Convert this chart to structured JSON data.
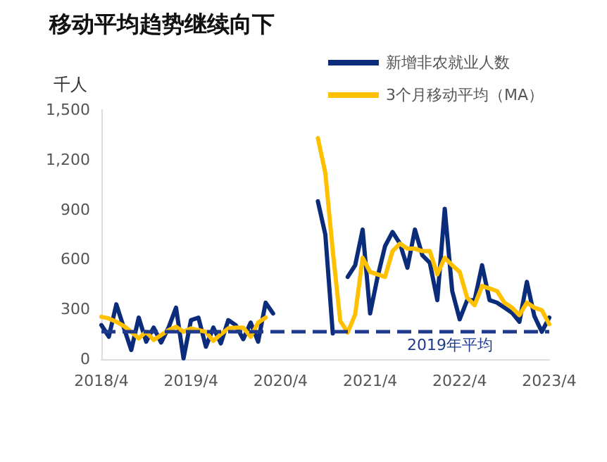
{
  "chart_data": {
    "type": "line",
    "title": "移动平均趋势继续向下",
    "ylabel": "千人",
    "categories": [
      "2018/4",
      null,
      null,
      null,
      null,
      null,
      null,
      null,
      null,
      null,
      null,
      null,
      "2019/4",
      null,
      null,
      null,
      null,
      null,
      null,
      null,
      null,
      null,
      null,
      null,
      "2020/4",
      null,
      null,
      null,
      null,
      null,
      null,
      null,
      null,
      null,
      null,
      null,
      "2021/4",
      null,
      null,
      null,
      null,
      null,
      null,
      null,
      null,
      null,
      null,
      null,
      "2022/4",
      null,
      null,
      null,
      null,
      null,
      null,
      null,
      null,
      null,
      null,
      null,
      "2023/4"
    ],
    "series": [
      {
        "name": "新增非农就业人数",
        "color": "#0b2c7a",
        "values": [
          205,
          135,
          330,
          190,
          55,
          250,
          105,
          190,
          100,
          190,
          310,
          5,
          235,
          250,
          75,
          190,
          95,
          235,
          205,
          120,
          220,
          105,
          340,
          275,
          null,
          null,
          null,
          null,
          null,
          950,
          750,
          155,
          null,
          495,
          565,
          780,
          275,
          495,
          680,
          765,
          695,
          550,
          780,
          625,
          580,
          355,
          905,
          410,
          240,
          355,
          355,
          565,
          355,
          340,
          310,
          280,
          225,
          465,
          260,
          165,
          250
        ]
      },
      {
        "name": "3个月移动平均（MA）",
        "color": "#ffc000",
        "values": [
          255,
          245,
          225,
          200,
          165,
          125,
          165,
          115,
          145,
          175,
          195,
          165,
          185,
          175,
          165,
          110,
          150,
          185,
          190,
          190,
          135,
          220,
          250,
          null,
          null,
          null,
          null,
          null,
          null,
          1330,
          1120,
          650,
          230,
          160,
          270,
          610,
          525,
          510,
          495,
          650,
          695,
          665,
          665,
          650,
          650,
          510,
          610,
          565,
          525,
          370,
          325,
          440,
          425,
          410,
          340,
          310,
          265,
          340,
          310,
          295,
          210
        ]
      }
    ],
    "ylim": [
      0,
      1500
    ],
    "yticks": [
      {
        "value": 0,
        "label": "0"
      },
      {
        "value": 300,
        "label": "300"
      },
      {
        "value": 600,
        "label": "600"
      },
      {
        "value": 900,
        "label": "900"
      },
      {
        "value": 1200,
        "label": "1,200"
      },
      {
        "value": 1500,
        "label": "1,500"
      }
    ],
    "ref_lines": [
      {
        "axis": "y",
        "value": 165,
        "label": "2019年平均",
        "color": "#1f3a8c",
        "line_style": "dashed"
      }
    ],
    "grid": false,
    "legend": "top right",
    "marker": "none",
    "line_style": "solid"
  }
}
